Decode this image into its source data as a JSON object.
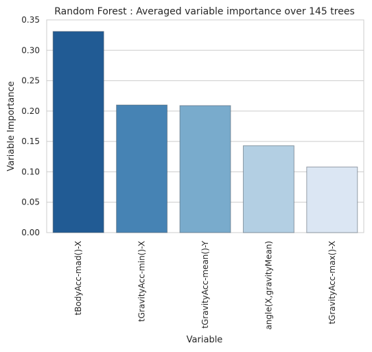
{
  "chart_data": {
    "type": "bar",
    "title": "Random Forest : Averaged variable importance over 145 trees",
    "xlabel": "Variable",
    "ylabel": "Variable Importance",
    "categories": [
      "tBodyAcc-mad()-X",
      "tGravityAcc-min()-X",
      "tGravityAcc-mean()-Y",
      "angle(X,gravityMean)",
      "tGravityAcc-max()-X"
    ],
    "values": [
      0.331,
      0.21,
      0.209,
      0.143,
      0.108
    ],
    "ylim": [
      0,
      0.35
    ],
    "yticks": [
      "0.00",
      "0.05",
      "0.10",
      "0.15",
      "0.20",
      "0.25",
      "0.30",
      "0.35"
    ],
    "grid": "y-major",
    "colors": [
      "#215b94",
      "#4683b4",
      "#79abcc",
      "#b3cfe3",
      "#dbe6f3"
    ]
  }
}
